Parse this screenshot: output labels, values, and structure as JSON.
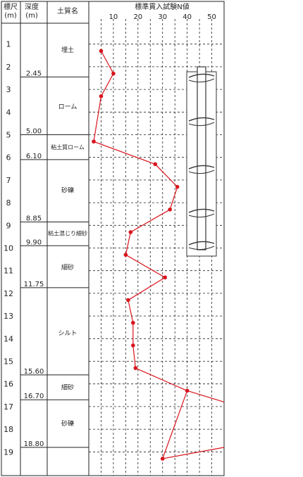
{
  "headers": {
    "scale": "標尺",
    "scale_unit": "(m)",
    "depth": "深度",
    "depth_unit": "(m)",
    "soil": "土質名",
    "spt": "標準貫入試験N値"
  },
  "scale_ticks": [
    "1",
    "2",
    "3",
    "4",
    "5",
    "6",
    "7",
    "8",
    "9",
    "10",
    "11",
    "12",
    "13",
    "14",
    "15",
    "16",
    "17",
    "18",
    "19"
  ],
  "layers": [
    {
      "top": 0,
      "bottom": 2.45,
      "depth_label": "2.45",
      "soil": "埋土",
      "soil_center": 1.25
    },
    {
      "top": 2.45,
      "bottom": 5.0,
      "depth_label": "5.00",
      "soil": "ローム",
      "soil_center": 3.75
    },
    {
      "top": 5.0,
      "bottom": 6.1,
      "depth_label": "6.10",
      "soil": "粘土質ローム",
      "soil_center": 5.55
    },
    {
      "top": 6.1,
      "bottom": 8.85,
      "depth_label": "8.85",
      "soil": "砂礫",
      "soil_center": 7.45
    },
    {
      "top": 8.85,
      "bottom": 9.9,
      "depth_label": "9.90",
      "soil": "粘土混じり細砂",
      "soil_center": 9.35
    },
    {
      "top": 9.9,
      "bottom": 11.75,
      "depth_label": "11.75",
      "soil": "細砂",
      "soil_center": 10.85
    },
    {
      "top": 11.75,
      "bottom": 15.6,
      "depth_label": "15.60",
      "soil": "シルト",
      "soil_center": 13.75
    },
    {
      "top": 15.6,
      "bottom": 16.7,
      "depth_label": "16.70",
      "soil": "細砂",
      "soil_center": 16.15
    },
    {
      "top": 16.7,
      "bottom": 18.8,
      "depth_label": "18.80",
      "soil": "砂礫",
      "soil_center": 17.75
    },
    {
      "top": 18.8,
      "bottom": 19.45,
      "depth_label": "",
      "soil": "",
      "soil_center": 19.1
    }
  ],
  "chart_data": {
    "type": "line",
    "title": "標準貫入試験N値",
    "x_ticks": [
      "10",
      "20",
      "30",
      "40",
      "50"
    ],
    "xlim": [
      0,
      55
    ],
    "ylim": [
      0,
      19.45
    ],
    "y_inverted": true,
    "grid": true,
    "series": [
      {
        "color": "#d9141c",
        "points": [
          {
            "depth": 1.3,
            "n": 5
          },
          {
            "depth": 2.3,
            "n": 10
          },
          {
            "depth": 3.3,
            "n": 5
          },
          {
            "depth": 5.3,
            "n": 2
          },
          {
            "depth": 6.3,
            "n": 27
          },
          {
            "depth": 7.3,
            "n": 36
          },
          {
            "depth": 8.3,
            "n": 33
          },
          {
            "depth": 9.3,
            "n": 17
          },
          {
            "depth": 10.3,
            "n": 15
          },
          {
            "depth": 11.3,
            "n": 31
          },
          {
            "depth": 12.3,
            "n": 16
          },
          {
            "depth": 13.3,
            "n": 18
          },
          {
            "depth": 14.3,
            "n": 18
          },
          {
            "depth": 15.3,
            "n": 19
          },
          {
            "depth": 16.3,
            "n": 40
          },
          {
            "depth": 19.3,
            "n": 30
          }
        ],
        "extensions": [
          {
            "from_depth": 16.3,
            "from_n": 40,
            "to_depth": 16.8,
            "to_n": 55
          },
          {
            "from_depth": 19.3,
            "from_n": 30,
            "to_depth": 18.8,
            "to_n": 55
          }
        ]
      }
    ]
  },
  "colors": {
    "line": "#d9141c",
    "grid": "#222222",
    "border": "#222222"
  },
  "icon": "screw-pile-icon"
}
